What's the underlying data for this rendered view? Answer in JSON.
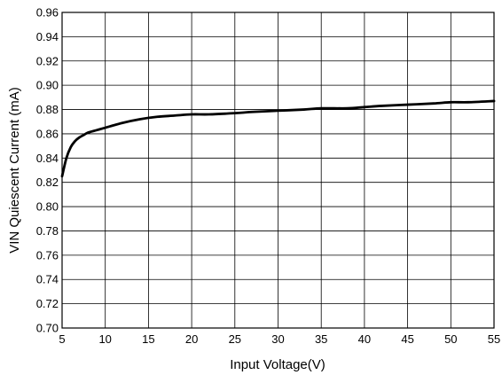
{
  "chart_data": {
    "type": "line",
    "title": "",
    "xlabel": "Input Voltage(V)",
    "ylabel": "VIN Quiescent Current (mA)",
    "xlim": [
      5,
      55
    ],
    "ylim": [
      0.7,
      0.96
    ],
    "grid": true,
    "legend": "none",
    "x_ticks": [
      "5",
      "10",
      "15",
      "20",
      "25",
      "30",
      "35",
      "40",
      "45",
      "50",
      "55"
    ],
    "y_ticks": [
      "0.70",
      "0.72",
      "0.74",
      "0.76",
      "0.78",
      "0.80",
      "0.82",
      "0.84",
      "0.86",
      "0.88",
      "0.90",
      "0.92",
      "0.94",
      "0.96"
    ],
    "series": [
      {
        "color": "#000000",
        "x": [
          5,
          5.5,
          6,
          6.5,
          7,
          7.5,
          8,
          9,
          10,
          12,
          14,
          16,
          18,
          20,
          22,
          25,
          27,
          30,
          33,
          35,
          38,
          40,
          42,
          45,
          48,
          50,
          52,
          55
        ],
        "y": [
          0.825,
          0.84,
          0.849,
          0.854,
          0.857,
          0.859,
          0.861,
          0.863,
          0.865,
          0.869,
          0.872,
          0.874,
          0.875,
          0.876,
          0.876,
          0.877,
          0.878,
          0.879,
          0.88,
          0.881,
          0.881,
          0.882,
          0.883,
          0.884,
          0.885,
          0.886,
          0.886,
          0.887
        ]
      }
    ]
  }
}
